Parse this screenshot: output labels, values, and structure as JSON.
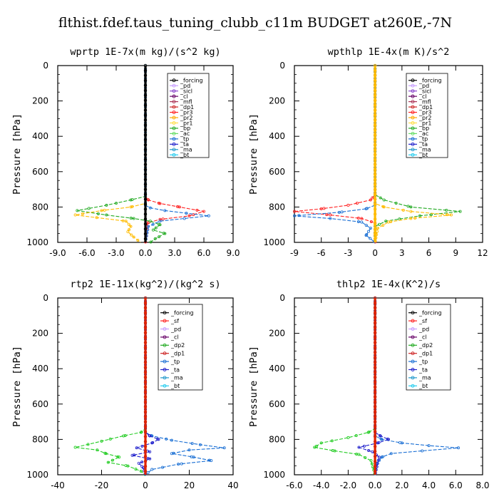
{
  "title": "flthist.fdef.taus_tuning_clubb_c11m  BUDGET at260E,-7N",
  "chart_data": [
    {
      "type": "line",
      "title": "wprtp  1E-7x(m kg)/(s^2 kg)",
      "ylabel": "Pressure [hPa]",
      "xlim": [
        -9,
        9
      ],
      "ylim": [
        1000,
        0
      ],
      "xticks": [
        "-9.0",
        "-6.0",
        "-3.0",
        "0.0",
        "3.0",
        "6.0",
        "9.0"
      ],
      "xtick_values": [
        -9,
        -6,
        -3,
        0,
        3,
        6,
        9
      ],
      "yticks": [
        "0",
        "200",
        "400",
        "600",
        "800",
        "1000"
      ],
      "ytick_values": [
        0,
        200,
        400,
        600,
        800,
        1000
      ],
      "legend": [
        "_forcing",
        "_pd",
        "_sicl",
        "_cl",
        "_mfl",
        "_dp1",
        "_pr3",
        "_pr2",
        "_pr1",
        "_bp",
        "_ac",
        "_tp",
        "_ta",
        "_ma",
        "_bt"
      ],
      "series": [
        {
          "name": "_pr3",
          "color": "#ff2020",
          "x": [
            0,
            0,
            0.3,
            1.5,
            3.5,
            6.0,
            4.5,
            1.5,
            0.2,
            0
          ],
          "y": [
            0,
            740,
            760,
            780,
            800,
            825,
            850,
            870,
            890,
            1000
          ]
        },
        {
          "name": "_bp",
          "color": "#22aa22",
          "x": [
            0,
            0,
            -1.5,
            -4,
            -7,
            -4,
            -1.2,
            0.5,
            1.5,
            0.8,
            2.0,
            1.0,
            0.5
          ],
          "y": [
            0,
            740,
            760,
            790,
            820,
            845,
            865,
            880,
            900,
            930,
            950,
            980,
            1000
          ]
        },
        {
          "name": "_pr1",
          "color": "#ffbb00",
          "x": [
            0,
            0,
            -1.5,
            -4.5,
            -7.2,
            -5,
            -2,
            -1.5,
            -1.8,
            -1.2,
            -0.5
          ],
          "y": [
            0,
            780,
            800,
            820,
            845,
            860,
            880,
            910,
            940,
            970,
            1000
          ]
        },
        {
          "name": "_tp",
          "color": "#1a6fd4",
          "x": [
            0,
            0,
            0.5,
            2,
            4.2,
            6.5,
            4,
            1.5,
            0.3,
            0
          ],
          "y": [
            0,
            790,
            805,
            820,
            835,
            850,
            865,
            880,
            910,
            1000
          ]
        },
        {
          "name": "_forcing",
          "color": "#000000",
          "x": [
            0,
            0
          ],
          "y": [
            0,
            1000
          ]
        }
      ]
    },
    {
      "type": "line",
      "title": "wpthlp  1E-4x(m K)/s^2",
      "ylabel": "Pressure [hPa]",
      "xlim": [
        -9,
        12
      ],
      "ylim": [
        1000,
        0
      ],
      "xticks": [
        "-9",
        "-6",
        "-3",
        "0",
        "3",
        "6",
        "9",
        "12"
      ],
      "xtick_values": [
        -9,
        -6,
        -3,
        0,
        3,
        6,
        9,
        12
      ],
      "yticks": [
        "0",
        "200",
        "400",
        "600",
        "800",
        "1000"
      ],
      "ytick_values": [
        0,
        200,
        400,
        600,
        800,
        1000
      ],
      "legend": [
        "_forcing",
        "_pd",
        "_sicl",
        "_cl",
        "_mfl",
        "_dp1",
        "_pr3",
        "_pr2",
        "_pr1",
        "_bp",
        "_ac",
        "_tp",
        "_ta",
        "_ma",
        "_bt"
      ],
      "series": [
        {
          "name": "_pr3",
          "color": "#ff2020",
          "x": [
            0,
            0,
            -0.5,
            -3,
            -6,
            -9,
            -5,
            -1.5,
            0,
            0
          ],
          "y": [
            0,
            730,
            760,
            790,
            810,
            825,
            845,
            865,
            890,
            1000
          ]
        },
        {
          "name": "_bp",
          "color": "#22aa22",
          "x": [
            0,
            0,
            1,
            4,
            9.5,
            5,
            1.2,
            0,
            0
          ],
          "y": [
            0,
            730,
            760,
            800,
            825,
            850,
            880,
            910,
            1000
          ]
        },
        {
          "name": "_pr1",
          "color": "#ffbb00",
          "x": [
            0,
            0,
            1,
            4,
            8.5,
            4,
            1.5,
            0.3,
            0
          ],
          "y": [
            0,
            780,
            800,
            825,
            845,
            865,
            885,
            920,
            1000
          ]
        },
        {
          "name": "_tp",
          "color": "#1a6fd4",
          "x": [
            0,
            0,
            -1,
            -4,
            -9,
            -5,
            -1.5,
            -0.5,
            -1.0,
            0
          ],
          "y": [
            0,
            790,
            810,
            830,
            850,
            865,
            885,
            920,
            960,
            1000
          ]
        },
        {
          "name": "_forcing",
          "color": "#ffbb00",
          "x": [
            0,
            0
          ],
          "y": [
            0,
            1000
          ]
        }
      ]
    },
    {
      "type": "line",
      "title": "rtp2  1E-11x(kg^2)/(kg^2 s)",
      "ylabel": "Pressure [hPa]",
      "xlim": [
        -40,
        40
      ],
      "ylim": [
        1000,
        0
      ],
      "xticks": [
        "-40",
        "-20",
        "0",
        "20",
        "40"
      ],
      "xtick_values": [
        -40,
        -20,
        0,
        20,
        40
      ],
      "yticks": [
        "0",
        "200",
        "400",
        "600",
        "800",
        "1000"
      ],
      "ytick_values": [
        0,
        200,
        400,
        600,
        800,
        1000
      ],
      "legend": [
        "_forcing",
        "_sf",
        "_pd",
        "_cl",
        "_dp2",
        "_dp1",
        "_tp",
        "_ta",
        "_ma",
        "_bt"
      ],
      "series": [
        {
          "name": "_dp1",
          "color": "#22cc22",
          "x": [
            0,
            0,
            -2,
            -10,
            -20,
            -32,
            -22,
            -18,
            -12,
            -17,
            -8,
            -2,
            0
          ],
          "y": [
            0,
            740,
            760,
            780,
            810,
            845,
            860,
            880,
            900,
            930,
            950,
            980,
            1000
          ]
        },
        {
          "name": "_tp",
          "color": "#1a6fd4",
          "x": [
            0,
            0,
            3,
            12,
            25,
            36,
            20,
            12,
            22,
            30,
            15,
            3,
            0
          ],
          "y": [
            0,
            760,
            780,
            805,
            830,
            848,
            860,
            880,
            900,
            920,
            940,
            970,
            1000
          ]
        },
        {
          "name": "_ta",
          "color": "#2222cc",
          "x": [
            0,
            0,
            2,
            6,
            3,
            -4,
            2,
            -6,
            2,
            -3,
            -1,
            0
          ],
          "y": [
            0,
            760,
            780,
            800,
            820,
            848,
            870,
            890,
            910,
            935,
            960,
            1000
          ]
        },
        {
          "name": "_forcing",
          "color": "#dd2200",
          "x": [
            0,
            0
          ],
          "y": [
            0,
            1000
          ]
        }
      ]
    },
    {
      "type": "line",
      "title": "thlp2  1E-4x(K^2)/s",
      "ylabel": "Pressure [hPa]",
      "xlim": [
        -6,
        8
      ],
      "ylim": [
        1000,
        0
      ],
      "xticks": [
        "-6.0",
        "-4.0",
        "-2.0",
        "0.0",
        "2.0",
        "4.0",
        "6.0",
        "8.0"
      ],
      "xtick_values": [
        -6,
        -4,
        -2,
        0,
        2,
        4,
        6,
        8
      ],
      "yticks": [
        "0",
        "200",
        "400",
        "600",
        "800",
        "1000"
      ],
      "ytick_values": [
        0,
        200,
        400,
        600,
        800,
        1000
      ],
      "legend": [
        "_forcing",
        "_sf",
        "_pd",
        "_cl",
        "_dp2",
        "_dp1",
        "_tp",
        "_ta",
        "_ma",
        "_bt"
      ],
      "series": [
        {
          "name": "_dp1",
          "color": "#22cc22",
          "x": [
            0,
            0,
            -0.5,
            -2,
            -4,
            -4.5,
            -3,
            -1.2,
            -0.3,
            0
          ],
          "y": [
            0,
            740,
            760,
            790,
            820,
            845,
            865,
            885,
            920,
            1000
          ]
        },
        {
          "name": "_tp",
          "color": "#1a6fd4",
          "x": [
            0,
            0,
            0.5,
            2,
            4,
            6.2,
            3.5,
            1.2,
            0.5,
            0.1,
            0
          ],
          "y": [
            0,
            780,
            800,
            820,
            835,
            848,
            865,
            880,
            900,
            940,
            1000
          ]
        },
        {
          "name": "_ta",
          "color": "#2222cc",
          "x": [
            0,
            0,
            0.4,
            1.0,
            0.2,
            -1.2,
            -0.2,
            0.3,
            0
          ],
          "y": [
            0,
            760,
            780,
            800,
            820,
            845,
            870,
            900,
            1000
          ]
        },
        {
          "name": "_forcing",
          "color": "#dd2200",
          "x": [
            0,
            0
          ],
          "y": [
            0,
            1000
          ]
        }
      ]
    }
  ]
}
